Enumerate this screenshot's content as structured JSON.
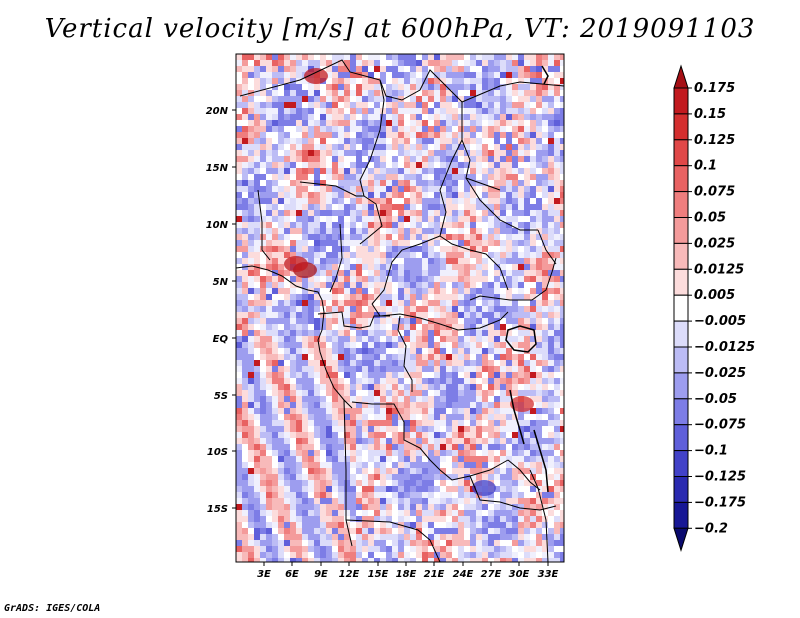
{
  "title": "Vertical velocity [m/s] at 600hPa, VT: 2019091103",
  "credit": "GrADS: IGES/COLA",
  "map": {
    "variable": "Vertical velocity",
    "units": "m/s",
    "level": "600hPa",
    "valid_time": "2019091103",
    "lat_labels": [
      "20N",
      "15N",
      "10N",
      "5N",
      "EQ",
      "5S",
      "10S",
      "15S"
    ],
    "lon_labels": [
      "3E",
      "6E",
      "9E",
      "12E",
      "15E",
      "18E",
      "21E",
      "24E",
      "27E",
      "30E",
      "33E"
    ]
  },
  "colorbar": {
    "labels": [
      "0.175",
      "0.15",
      "0.125",
      "0.1",
      "0.075",
      "0.05",
      "0.025",
      "0.0125",
      "0.005",
      "−0.005",
      "−0.0125",
      "−0.025",
      "−0.05",
      "−0.075",
      "−0.1",
      "−0.125",
      "−0.175",
      "−0.2"
    ],
    "colors": [
      "#a50f15",
      "#c21a1f",
      "#d42f2f",
      "#e04848",
      "#e86262",
      "#ef7e7e",
      "#f49b9b",
      "#f8baba",
      "#fcdcdc",
      "#ffffff",
      "#dcdcfa",
      "#bcbcf5",
      "#9d9def",
      "#7d7de6",
      "#5f5fda",
      "#4242c8",
      "#2a2ab0",
      "#171795",
      "#0a0a6e"
    ]
  }
}
